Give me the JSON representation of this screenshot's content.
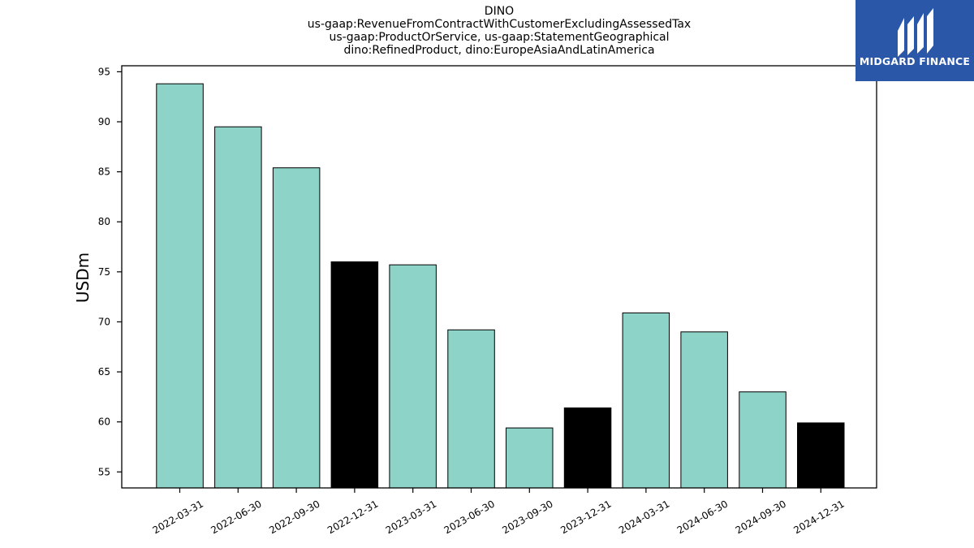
{
  "chart_data": {
    "type": "bar",
    "title_lines": [
      "DINO",
      "us-gaap:RevenueFromContractWithCustomerExcludingAssessedTax",
      "us-gaap:ProductOrService, us-gaap:StatementGeographical",
      "dino:RefinedProduct, dino:EuropeAsiaAndLatinAmerica"
    ],
    "xlabel": "",
    "ylabel": "USDm",
    "ylim": [
      53.4,
      95.6
    ],
    "yticks": [
      55,
      60,
      65,
      70,
      75,
      80,
      85,
      90,
      95
    ],
    "categories": [
      "2022-03-31",
      "2022-06-30",
      "2022-09-30",
      "2022-12-31",
      "2023-03-31",
      "2023-06-30",
      "2023-09-30",
      "2023-12-31",
      "2024-03-31",
      "2024-06-30",
      "2024-09-30",
      "2024-12-31"
    ],
    "values": [
      93.8,
      89.5,
      85.4,
      76.0,
      75.7,
      69.2,
      59.4,
      61.4,
      70.9,
      69.0,
      63.0,
      59.9
    ],
    "bar_colors": [
      "#8dd3c7",
      "#8dd3c7",
      "#8dd3c7",
      "#000000",
      "#8dd3c7",
      "#8dd3c7",
      "#8dd3c7",
      "#000000",
      "#8dd3c7",
      "#8dd3c7",
      "#8dd3c7",
      "#000000"
    ],
    "grid": false
  },
  "logo": {
    "text": "MIDGARD FINANCE",
    "bg_color": "#2b57a8"
  }
}
